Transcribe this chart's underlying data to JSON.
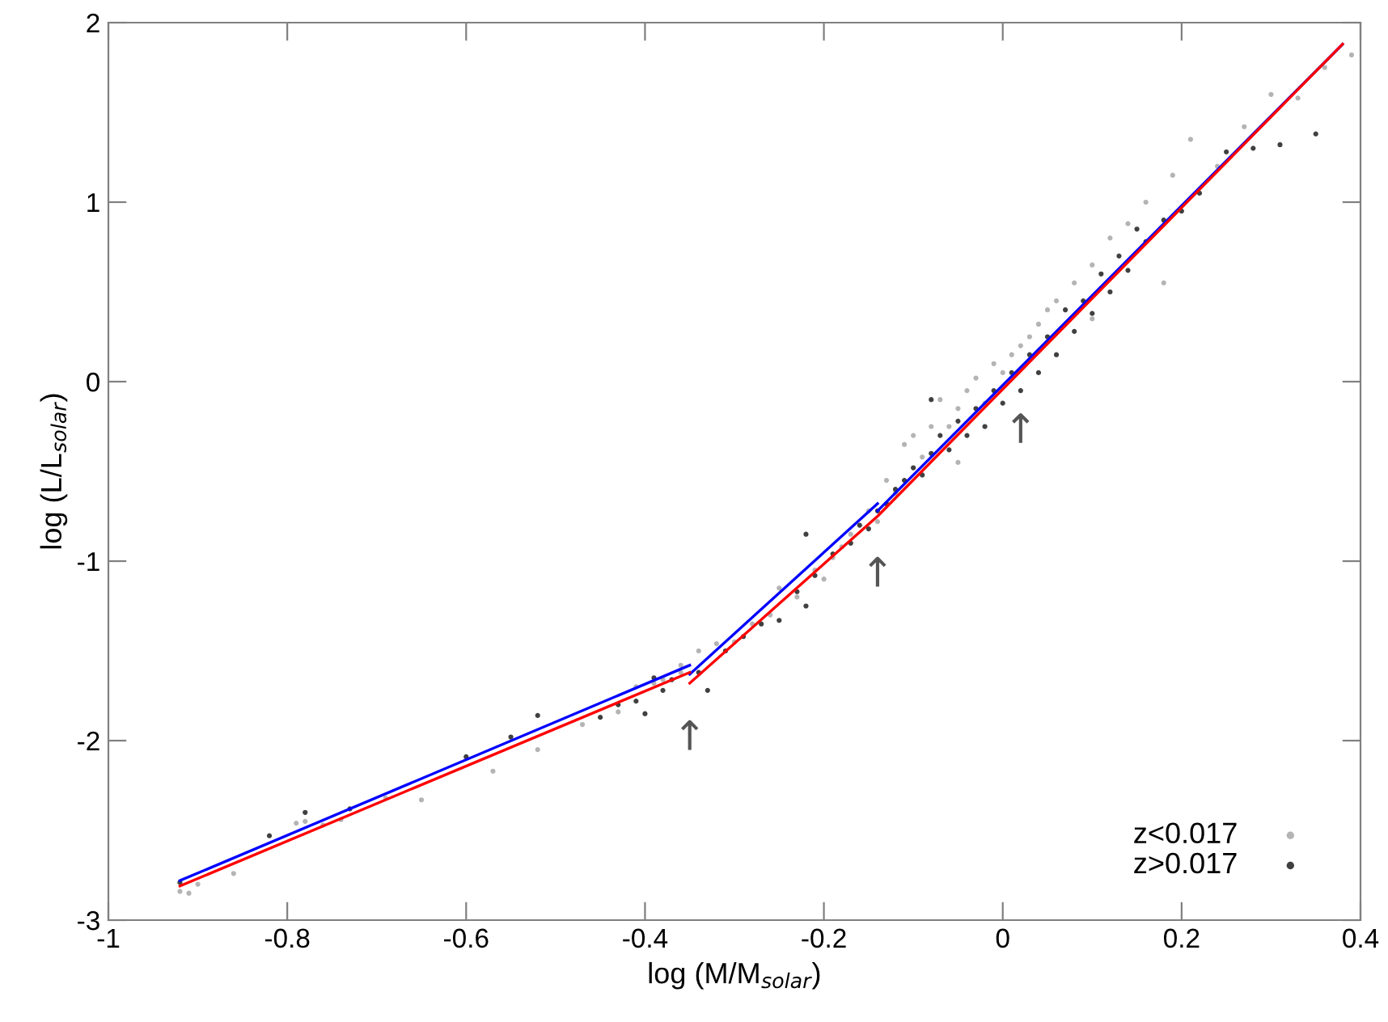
{
  "chart_data": {
    "type": "scatter",
    "xlabel": "log (M/M$_{solar}$)",
    "ylabel": "log (L/L$_{solar}$)",
    "xlim": [
      -1,
      0.4
    ],
    "ylim": [
      -3,
      2
    ],
    "xticks": [
      -1,
      -0.8,
      -0.6,
      -0.4,
      -0.2,
      0,
      0.2,
      0.4
    ],
    "yticks": [
      -3,
      -2,
      -1,
      0,
      1,
      2
    ],
    "grid": false,
    "legend": "bottom right",
    "annotations": [
      {
        "text": "↑",
        "x": -0.35,
        "y": -1.63
      },
      {
        "text": "↑",
        "x": -0.14,
        "y": -0.72
      },
      {
        "text": "↑",
        "x": 0.02,
        "y": 0.08
      }
    ],
    "series": [
      {
        "name": "z<0.017",
        "color": "#b4b4b4",
        "x": [
          -0.92,
          -0.91,
          -0.9,
          -0.86,
          -0.79,
          -0.78,
          -0.76,
          -0.74,
          -0.69,
          -0.65,
          -0.57,
          -0.52,
          -0.47,
          -0.43,
          -0.41,
          -0.39,
          -0.38,
          -0.36,
          -0.36,
          -0.34,
          -0.32,
          -0.3,
          -0.28,
          -0.26,
          -0.25,
          -0.23,
          -0.21,
          -0.2,
          -0.19,
          -0.18,
          -0.17,
          -0.15,
          -0.14,
          -0.13,
          -0.12,
          -0.11,
          -0.1,
          -0.09,
          -0.08,
          -0.07,
          -0.06,
          -0.05,
          -0.04,
          -0.03,
          -0.02,
          -0.01,
          0.0,
          0.01,
          0.02,
          0.03,
          0.04,
          0.05,
          0.06,
          0.08,
          0.1,
          0.12,
          0.14,
          0.16,
          0.19,
          0.21,
          0.24,
          0.27,
          0.3,
          0.33,
          0.36,
          0.39,
          -0.05,
          0.1,
          0.18
        ],
        "values": [
          -2.84,
          -2.85,
          -2.8,
          -2.74,
          -2.46,
          -2.45,
          -2.47,
          -2.44,
          -2.32,
          -2.33,
          -2.17,
          -2.05,
          -1.91,
          -1.84,
          -1.7,
          -1.68,
          -1.66,
          -1.62,
          -1.58,
          -1.5,
          -1.46,
          -1.45,
          -1.35,
          -1.3,
          -1.15,
          -1.2,
          -1.05,
          -1.1,
          -0.98,
          -0.92,
          -0.85,
          -0.72,
          -0.78,
          -0.55,
          -0.62,
          -0.35,
          -0.3,
          -0.42,
          -0.25,
          -0.1,
          -0.25,
          -0.15,
          -0.05,
          0.02,
          -0.12,
          0.1,
          0.05,
          0.15,
          0.2,
          0.25,
          0.32,
          0.4,
          0.45,
          0.55,
          0.65,
          0.8,
          0.88,
          1.0,
          1.15,
          1.35,
          1.2,
          1.42,
          1.6,
          1.58,
          1.75,
          1.82,
          -0.45,
          0.35,
          0.55
        ]
      },
      {
        "name": "z>0.017",
        "color": "#404040",
        "x": [
          -0.92,
          -0.82,
          -0.78,
          -0.73,
          -0.6,
          -0.55,
          -0.52,
          -0.45,
          -0.43,
          -0.41,
          -0.4,
          -0.39,
          -0.38,
          -0.37,
          -0.34,
          -0.33,
          -0.31,
          -0.29,
          -0.27,
          -0.25,
          -0.23,
          -0.22,
          -0.21,
          -0.19,
          -0.17,
          -0.16,
          -0.15,
          -0.14,
          -0.13,
          -0.12,
          -0.11,
          -0.1,
          -0.09,
          -0.08,
          -0.07,
          -0.06,
          -0.05,
          -0.04,
          -0.03,
          -0.02,
          -0.01,
          0.0,
          0.01,
          0.02,
          0.03,
          0.04,
          0.05,
          0.06,
          0.07,
          0.08,
          0.09,
          0.1,
          0.11,
          0.12,
          0.13,
          0.14,
          0.15,
          0.16,
          0.18,
          0.2,
          0.22,
          0.25,
          0.28,
          0.31,
          0.35,
          -0.22,
          -0.08
        ],
        "values": [
          -2.79,
          -2.53,
          -2.4,
          -2.38,
          -2.09,
          -1.98,
          -1.86,
          -1.87,
          -1.8,
          -1.78,
          -1.85,
          -1.65,
          -1.72,
          -1.66,
          -1.62,
          -1.72,
          -1.5,
          -1.42,
          -1.35,
          -1.33,
          -1.17,
          -1.25,
          -1.08,
          -0.96,
          -0.9,
          -0.8,
          -0.82,
          -0.72,
          -0.68,
          -0.6,
          -0.55,
          -0.48,
          -0.52,
          -0.4,
          -0.3,
          -0.38,
          -0.22,
          -0.3,
          -0.15,
          -0.25,
          -0.05,
          -0.12,
          0.05,
          -0.05,
          0.15,
          0.05,
          0.25,
          0.15,
          0.4,
          0.28,
          0.45,
          0.38,
          0.6,
          0.5,
          0.7,
          0.62,
          0.85,
          0.78,
          0.9,
          0.95,
          1.05,
          1.28,
          1.3,
          1.32,
          1.38,
          -0.85,
          -0.1
        ]
      },
      {
        "type": "line",
        "color": "#0000ff",
        "x": [
          -0.92,
          -0.35
        ],
        "values": [
          -2.78,
          -1.58
        ]
      },
      {
        "type": "line",
        "color": "#0000ff",
        "x": [
          -0.35,
          -0.14
        ],
        "values": [
          -1.63,
          -0.68
        ]
      },
      {
        "type": "line",
        "color": "#0000ff",
        "x": [
          -0.14,
          0.38
        ],
        "values": [
          -0.72,
          1.88
        ]
      },
      {
        "type": "line",
        "color": "#ff0000",
        "x": [
          -0.92,
          -0.35
        ],
        "values": [
          -2.81,
          -1.62
        ]
      },
      {
        "type": "line",
        "color": "#ff0000",
        "x": [
          -0.35,
          -0.14,
          0.38
        ],
        "values": [
          -1.68,
          -0.75,
          1.88
        ]
      }
    ]
  }
}
